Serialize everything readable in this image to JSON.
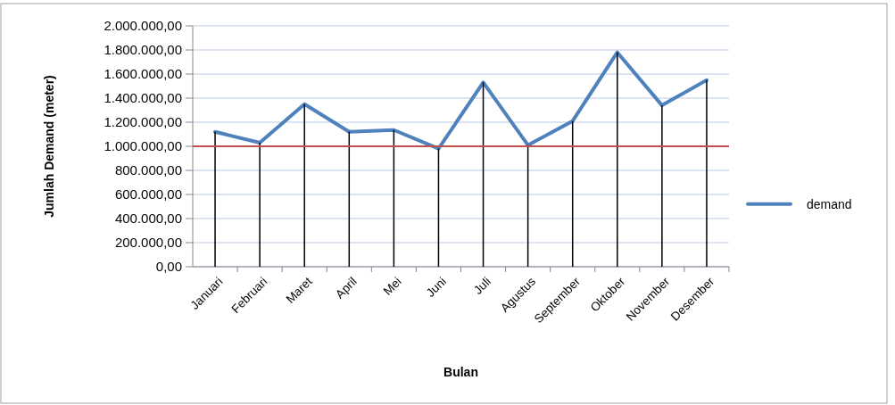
{
  "chart_data": {
    "type": "line",
    "xlabel": "Bulan",
    "ylabel": "Jumlah Demand (meter)",
    "categories": [
      "Januari",
      "Februari",
      "Maret",
      "April",
      "Mei",
      "Juni",
      "Juli",
      "Agustus",
      "September",
      "Oktober",
      "November",
      "Desember"
    ],
    "series": [
      {
        "name": "demand",
        "color": "#4f81bd",
        "values": [
          1120000,
          1030000,
          1350000,
          1120000,
          1135000,
          980000,
          1530000,
          1010000,
          1210000,
          1780000,
          1340000,
          1550000
        ]
      },
      {
        "type": "bar",
        "color": "#000000",
        "values": [
          1120000,
          1030000,
          1350000,
          1120000,
          1135000,
          980000,
          1530000,
          1010000,
          1210000,
          1780000,
          1340000,
          1550000
        ]
      }
    ],
    "ylim": [
      0,
      2000000
    ],
    "yticks": [
      {
        "value": 0,
        "label": "0,00"
      },
      {
        "value": 200000,
        "label": "200.000,00"
      },
      {
        "value": 400000,
        "label": "400.000,00"
      },
      {
        "value": 600000,
        "label": "600.000,00"
      },
      {
        "value": 800000,
        "label": "800.000,00"
      },
      {
        "value": 1000000,
        "label": "1.000.000,00"
      },
      {
        "value": 1200000,
        "label": "1.200.000,00"
      },
      {
        "value": 1400000,
        "label": "1.400.000,00"
      },
      {
        "value": 1600000,
        "label": "1.600.000,00"
      },
      {
        "value": 1800000,
        "label": "1.800.000,00"
      },
      {
        "value": 2000000,
        "label": "2.000.000,00"
      }
    ],
    "ref_lines": [
      {
        "axis": "y",
        "value": 1000000,
        "color": "#c0504d"
      }
    ],
    "grid": "y",
    "legend": "right",
    "marker": "none",
    "line_style": "solid"
  }
}
